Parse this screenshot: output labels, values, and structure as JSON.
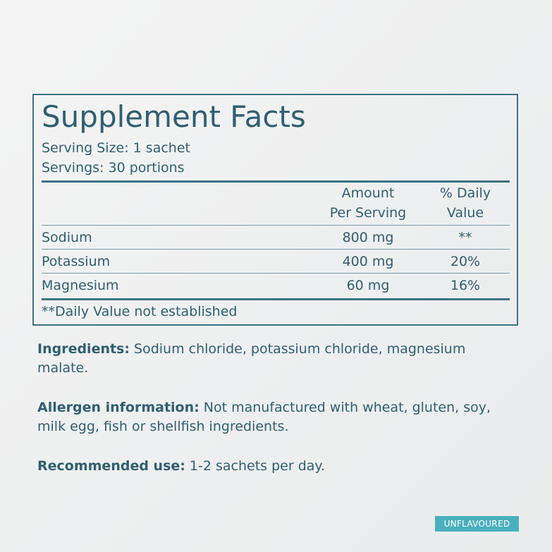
{
  "title": "Supplement Facts",
  "serving_size": "Serving Size: 1 sachet",
  "servings": "Servings: 30 portions",
  "table": {
    "headers": {
      "amount_line1": "Amount",
      "amount_line2": "Per Serving",
      "dv_line1": "% Daily",
      "dv_line2": "Value"
    },
    "rows": [
      {
        "name": "Sodium",
        "amount": "800 mg",
        "dv": "**"
      },
      {
        "name": "Potassium",
        "amount": "400 mg",
        "dv": "20%"
      },
      {
        "name": "Magnesium",
        "amount": "60 mg",
        "dv": "16%"
      }
    ],
    "footnote": "**Daily Value not established"
  },
  "ingredients": {
    "label": "Ingredients:",
    "text": " Sodium chloride, potassium chloride, magnesium malate."
  },
  "allergen": {
    "label": "Allergen information:",
    "text": " Not manufactured with wheat, gluten, soy, milk egg, fish or shellfish ingredients."
  },
  "recommended": {
    "label": "Recommended use:",
    "text": " 1-2 sachets per day."
  },
  "badge": "UNFLAVOURED",
  "colors": {
    "text": "#2f5f70",
    "border": "#3f7184",
    "badge": "#4ab0bd"
  }
}
